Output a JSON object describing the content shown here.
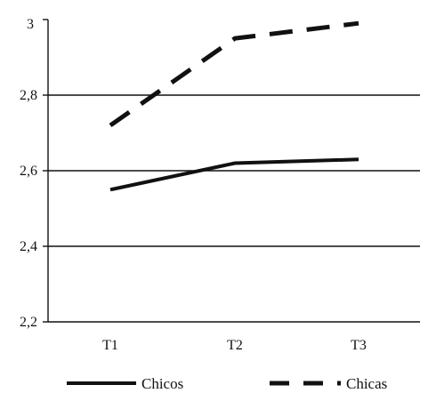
{
  "chart_data": {
    "type": "line",
    "categories": [
      "T1",
      "T2",
      "T3"
    ],
    "series": [
      {
        "name": "Chicos",
        "values": [
          2.55,
          2.62,
          2.63
        ],
        "style": "solid",
        "color": "#111111"
      },
      {
        "name": "Chicas",
        "values": [
          2.72,
          2.95,
          2.99
        ],
        "style": "dashed",
        "color": "#111111"
      }
    ],
    "title": "",
    "xlabel": "",
    "ylabel": "",
    "ylim": [
      2.2,
      3
    ],
    "yticks": [
      2.2,
      2.4,
      2.6,
      2.8,
      3
    ],
    "ytick_labels": [
      "2,2",
      "2,4",
      "2,6",
      "2,8",
      "3"
    ],
    "grid": "horizontal at 2,4 / 2,6 / 2,8",
    "legend": "bottom"
  }
}
